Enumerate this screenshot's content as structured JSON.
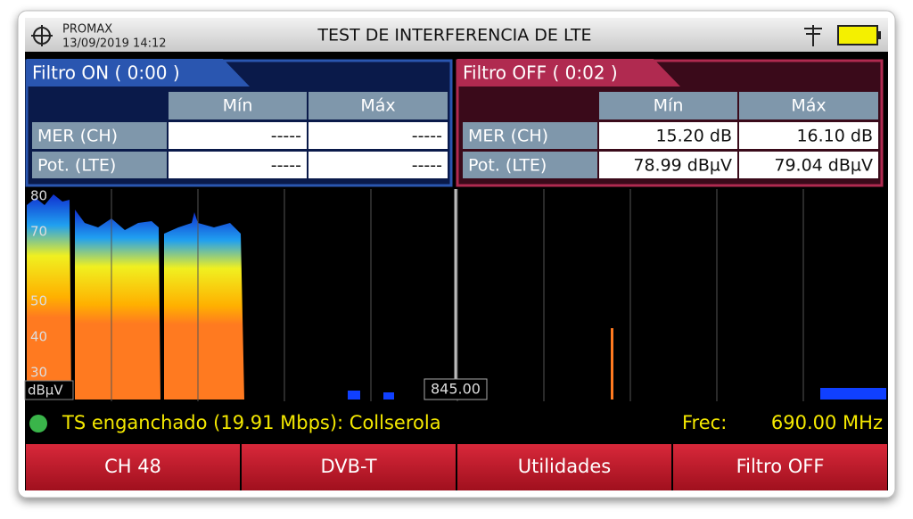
{
  "header": {
    "brand": "PROMAX",
    "datetime": "13/09/2019 14:12",
    "title": "TEST DE INTERFERENCIA DE LTE"
  },
  "panels": [
    {
      "title": "Filtro ON ( 0:00 )",
      "columns": [
        "Mín",
        "Máx"
      ],
      "rows": [
        [
          "MER (CH)",
          "-----",
          "-----"
        ],
        [
          "Pot. (LTE)",
          "-----",
          "-----"
        ]
      ]
    },
    {
      "title": "Filtro OFF ( 0:02 )",
      "columns": [
        "Mín",
        "Máx"
      ],
      "rows": [
        [
          "MER (CH)",
          "15.20 dB",
          "16.10 dB"
        ],
        [
          "Pot. (LTE)",
          "78.99 dBµV",
          "79.04 dBµV"
        ]
      ]
    }
  ],
  "spectrum": {
    "y_labels": [
      "80",
      "70",
      "50",
      "40",
      "30"
    ],
    "unit": "dBµV",
    "marker": "845.00"
  },
  "status": {
    "text": "TS enganchado (19.91 Mbps): Collserola",
    "freq_label": "Frec:",
    "freq_value": "690.00 MHz"
  },
  "buttons": [
    "CH 48",
    "DVB-T",
    "Utilidades",
    "Filtro OFF"
  ]
}
